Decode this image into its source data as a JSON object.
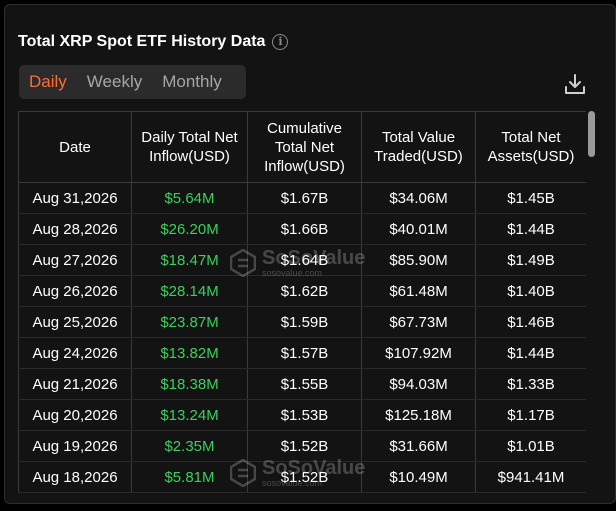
{
  "header": {
    "title": "Total XRP Spot ETF History Data",
    "info_icon": "info-icon"
  },
  "tabs": [
    {
      "label": "Daily",
      "active": true
    },
    {
      "label": "Weekly",
      "active": false
    },
    {
      "label": "Monthly",
      "active": false
    }
  ],
  "toolbar": {
    "download_icon": "download-icon"
  },
  "colors": {
    "accent": "#ff6a35",
    "positive": "#3ccf5c",
    "background": "#131313"
  },
  "table": {
    "columns": [
      "Date",
      "Daily Total Net Inflow(USD)",
      "Cumulative Total Net Inflow(USD)",
      "Total Value Traded(USD)",
      "Total Net Assets(USD)"
    ],
    "rows": [
      [
        "Aug 31,2026",
        "$5.64M",
        "$1.67B",
        "$34.06M",
        "$1.45B"
      ],
      [
        "Aug 28,2026",
        "$26.20M",
        "$1.66B",
        "$40.01M",
        "$1.44B"
      ],
      [
        "Aug 27,2026",
        "$18.47M",
        "$1.64B",
        "$85.90M",
        "$1.49B"
      ],
      [
        "Aug 26,2026",
        "$28.14M",
        "$1.62B",
        "$61.48M",
        "$1.40B"
      ],
      [
        "Aug 25,2026",
        "$23.87M",
        "$1.59B",
        "$67.73M",
        "$1.46B"
      ],
      [
        "Aug 24,2026",
        "$13.82M",
        "$1.57B",
        "$107.92M",
        "$1.44B"
      ],
      [
        "Aug 21,2026",
        "$18.38M",
        "$1.55B",
        "$94.03M",
        "$1.33B"
      ],
      [
        "Aug 20,2026",
        "$13.24M",
        "$1.53B",
        "$125.18M",
        "$1.17B"
      ],
      [
        "Aug 19,2026",
        "$2.35M",
        "$1.52B",
        "$31.66M",
        "$1.01B"
      ],
      [
        "Aug 18,2026",
        "$5.81M",
        "$1.52B",
        "$10.49M",
        "$941.41M"
      ]
    ]
  },
  "watermark": {
    "name": "SoSoValue",
    "domain": "sosovalue.com"
  }
}
